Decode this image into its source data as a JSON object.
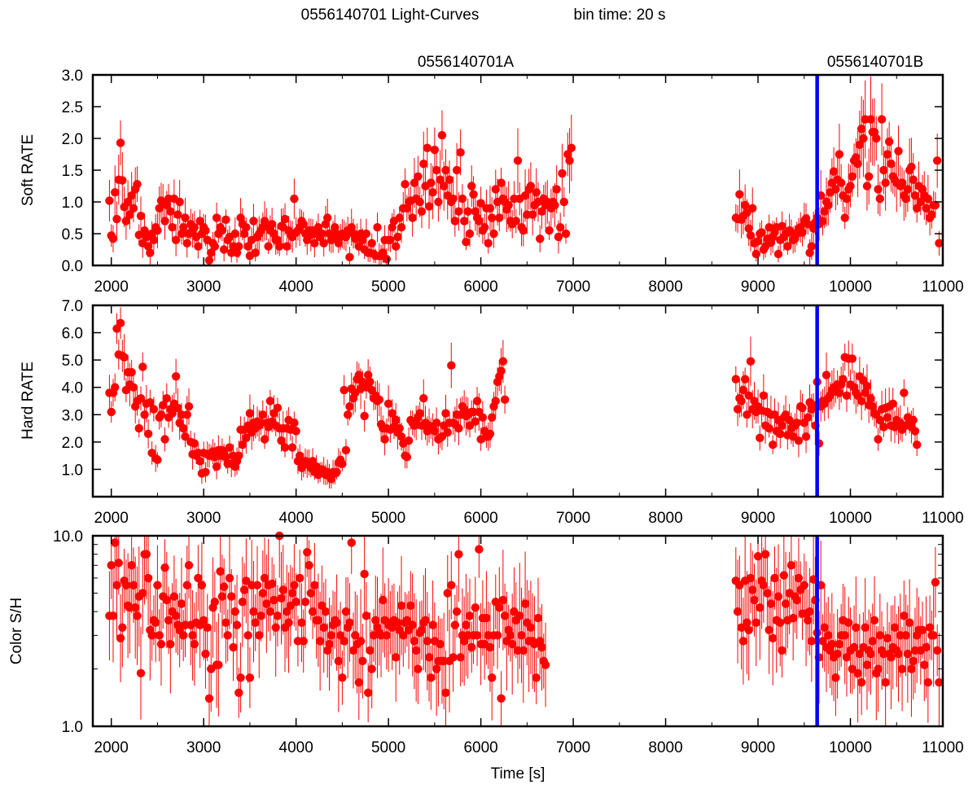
{
  "figure": {
    "title_left": "0556140701 Light-Curves",
    "title_right": "bin time: 20 s",
    "label_a": "0556140701A",
    "label_b": "0556140701B",
    "xlabel": "Time [s]"
  },
  "colors": {
    "points": "#ff0000",
    "marker_line": "#0000ff",
    "axes": "#000000"
  },
  "chart_data": [
    {
      "type": "scatter",
      "name": "soft",
      "ylabel": "Soft RATE",
      "xlim": [
        1800,
        11000
      ],
      "ylim": [
        0,
        3.0
      ],
      "yscale": "linear",
      "xticks": [
        2000,
        3000,
        4000,
        5000,
        6000,
        7000,
        8000,
        9000,
        10000,
        11000
      ],
      "xtick_labels": [
        "2000",
        "3000",
        "4000",
        "5000",
        "6000",
        "7000",
        "8000",
        "9000",
        "10000",
        "11000"
      ],
      "yticks": [
        0,
        0.5,
        1.0,
        1.5,
        2.0,
        2.5,
        3.0
      ],
      "ytick_labels": [
        "0.0",
        "0.5",
        "1.0",
        "1.5",
        "2.0",
        "2.5",
        "3.0"
      ],
      "marker_x": 9640,
      "segment_a": {
        "x_start": 1980,
        "dx": 20,
        "y": [
          1.02,
          0.47,
          0.42,
          1.15,
          0.73,
          1.35,
          1.93,
          1.34,
          0.92,
          0.7,
          1.0,
          0.8,
          1.1,
          0.9,
          1.2,
          1.28,
          0.48,
          0.78,
          0.35,
          0.55,
          0.45,
          0.3,
          0.2,
          0.5,
          0.4,
          0.6,
          0.55,
          0.9,
          1.02,
          1.0,
          0.7,
          0.95,
          1.05,
          0.85,
          0.6,
          1.05,
          0.4,
          0.8,
          1.0,
          0.5,
          0.6,
          0.75,
          0.35,
          0.5,
          0.65,
          0.55,
          0.6,
          0.45,
          0.3,
          0.7,
          0.5,
          0.6,
          0.55,
          0.4,
          0.08,
          0.2,
          0.35,
          0.3,
          0.75,
          0.5,
          0.6,
          0.55,
          0.25,
          0.72,
          0.4,
          0.45,
          0.2,
          0.3,
          0.5,
          0.2,
          0.3,
          0.75,
          0.65,
          0.5,
          0.6,
          0.3,
          0.15,
          0.4,
          0.7,
          0.2,
          0.45,
          0.5,
          0.55,
          0.6,
          0.7,
          0.65,
          0.3,
          0.55,
          0.65,
          0.5,
          0.4,
          0.4,
          0.3,
          0.62,
          0.6,
          0.73,
          0.3,
          0.55,
          0.48,
          0.45,
          1.05,
          0.52,
          0.55,
          0.6,
          0.7,
          0.65,
          0.5,
          0.4,
          0.55,
          0.48,
          0.55,
          0.35,
          0.5,
          0.6,
          0.45,
          0.5,
          0.35,
          0.65,
          0.75,
          0.5,
          0.4,
          0.45,
          0.6,
          0.5,
          0.35,
          0.45,
          0.5,
          0.48,
          0.45,
          0.55,
          0.13,
          0.6,
          0.5,
          0.42,
          0.45,
          0.3,
          0.5,
          0.4,
          0.25,
          0.5,
          0.2,
          0.2,
          0.35,
          0.18,
          0.15,
          0.6,
          0.15,
          0.15,
          0.2,
          0.4,
          0.1,
          0.4,
          0.4,
          0.6,
          0.7,
          0.3,
          0.45,
          0.75,
          0.6,
          0.9,
          1.28,
          0.9,
          1.0,
          1.02,
          0.75,
          1.3,
          1.05,
          1.4,
          1.0,
          0.85,
          1.6,
          1.25,
          1.85,
          0.93,
          1.3,
          1.15,
          1.82,
          1.5,
          1.0,
          1.35,
          2.05,
          1.25,
          1.5,
          1.1,
          1.35,
          1.0,
          1.05,
          0.7,
          1.5,
          0.85,
          1.78,
          1.05,
          0.7,
          0.37,
          0.85,
          0.5,
          1.25,
          1.12,
          0.85,
          0.75,
          0.7,
          0.98,
          0.55,
          0.6,
          0.9,
          0.35,
          0.9,
          0.75,
          0.5,
          1.2,
          1.0,
          0.75,
          1.3,
          1.05,
          1.0,
          0.88,
          0.95,
          0.7,
          0.65,
          1.05,
          0.7,
          1.65,
          1.05,
          0.6,
          0.55,
          1.1,
          0.8,
          1.2,
          1.25,
          0.8,
          0.95,
          1.15,
          1.0,
          0.42,
          0.85,
          1.05,
          0.95,
          1.0,
          0.55,
          0.9,
          1.0,
          0.95,
          1.2,
          0.45,
          0.6,
          1.45,
          1.0,
          0.5,
          1.75,
          1.65,
          1.85
        ]
      },
      "segment_b": {
        "x_start": 8760,
        "dx": 20,
        "y": [
          0.75,
          0.73,
          1.12,
          0.72,
          0.78,
          0.95,
          0.83,
          0.58,
          0.47,
          0.9,
          0.35,
          0.18,
          0.38,
          0.5,
          0.52,
          0.25,
          0.3,
          0.42,
          0.6,
          0.36,
          0.45,
          0.52,
          0.6,
          0.18,
          0.4,
          0.62,
          0.45,
          0.5,
          0.3,
          0.55,
          0.52,
          0.4,
          0.42,
          0.5,
          0.58,
          0.6,
          0.52,
          0.7,
          0.74,
          0.65,
          0.2,
          0.3,
          0.58,
          0.68,
          0.75,
          0.65,
          1.1,
          0.7,
          0.85,
          1.0,
          0.95,
          1.15,
          1.3,
          1.48,
          1.2,
          1.35,
          1.75,
          1.3,
          1.1,
          0.75,
          1.05,
          1.2,
          1.25,
          1.4,
          1.65,
          1.7,
          1.6,
          1.9,
          2.15,
          2.0,
          2.3,
          1.25,
          1.4,
          2.3,
          2.1,
          2.1,
          2.0,
          1.2,
          1.05,
          2.3,
          1.5,
          1.3,
          1.75,
          1.95,
          1.6,
          1.4,
          1.35,
          1.3,
          1.8,
          1.25,
          1.3,
          1.1,
          1.05,
          1.2,
          1.5,
          1.55,
          1.35,
          1.1,
          0.9,
          1.25,
          1.0,
          1.2,
          1.1,
          0.9,
          1.05,
          0.75,
          0.8,
          0.95,
          0.95,
          1.65,
          0.35
        ]
      }
    },
    {
      "type": "scatter",
      "name": "hard",
      "ylabel": "Hard RATE",
      "xlim": [
        1800,
        11000
      ],
      "ylim": [
        0,
        7.0
      ],
      "yscale": "linear",
      "xticks": [
        2000,
        3000,
        4000,
        5000,
        6000,
        7000,
        8000,
        9000,
        10000,
        11000
      ],
      "xtick_labels": [
        "2000",
        "3000",
        "4000",
        "5000",
        "6000",
        "7000",
        "8000",
        "9000",
        "10000",
        "11000"
      ],
      "yticks": [
        1,
        2,
        3,
        4,
        5,
        6,
        7
      ],
      "ytick_labels": [
        "1.0",
        "2.0",
        "3.0",
        "4.0",
        "5.0",
        "6.0",
        "7.0"
      ],
      "marker_x": 9640,
      "segment_a": {
        "x_start": 1980,
        "dx": 20,
        "y": [
          3.8,
          3.1,
          3.8,
          4.0,
          6.15,
          5.2,
          6.35,
          5.15,
          5.1,
          3.9,
          4.55,
          4.1,
          4.55,
          4.0,
          3.3,
          3.5,
          2.5,
          3.6,
          4.75,
          3.0,
          3.4,
          2.3,
          3.45,
          1.6,
          3.2,
          1.4,
          1.35,
          2.9,
          3.0,
          3.35,
          2.1,
          3.6,
          2.9,
          3.2,
          3.05,
          3.4,
          4.4,
          3.25,
          2.7,
          3.0,
          2.5,
          2.2,
          3.0,
          3.3,
          2.0,
          1.55,
          1.95,
          1.5,
          1.6,
          1.3,
          0.85,
          1.6,
          0.9,
          1.55,
          1.5,
          1.6,
          1.65,
          1.45,
          1.1,
          1.7,
          1.5,
          1.7,
          1.6,
          1.45,
          1.2,
          1.8,
          1.2,
          1.5,
          1.1,
          1.3,
          1.5,
          2.45,
          1.9,
          2.45,
          2.15,
          2.6,
          3.05,
          2.35,
          2.7,
          2.5,
          2.75,
          2.6,
          2.7,
          3.0,
          2.1,
          2.7,
          2.55,
          3.5,
          2.75,
          3.05,
          2.6,
          3.25,
          2.5,
          2.05,
          2.5,
          1.8,
          2.5,
          2.8,
          2.45,
          1.8,
          2.7,
          2.4,
          1.3,
          1.5,
          1.05,
          1.15,
          1.3,
          1.2,
          1.25,
          1.05,
          1.3,
          0.9,
          1.1,
          0.8,
          0.9,
          1.0,
          0.95,
          0.8,
          0.9,
          0.75,
          0.65,
          0.9,
          0.85,
          0.9,
          1.25,
          1.35,
          1.2,
          3.9,
          1.7,
          3.0,
          3.3,
          3.95,
          3.6,
          3.8,
          4.3,
          4.45,
          3.95,
          4.2,
          2.95,
          4.0,
          4.45,
          4.2,
          3.9,
          3.6,
          3.7,
          3.5,
          3.55,
          2.65,
          2.5,
          2.1,
          2.5,
          3.4,
          2.45,
          3.05,
          2.55,
          2.8,
          2.35,
          2.5,
          2.2,
          1.95,
          1.5,
          1.45,
          2.05,
          2.8,
          2.7,
          2.6,
          2.7,
          2.9,
          3.05,
          2.6,
          3.6,
          2.7,
          2.4,
          2.6,
          2.5,
          2.45,
          2.4,
          2.7,
          2.1,
          2.15,
          2.2,
          2.6,
          3.05,
          2.35,
          2.7,
          4.8,
          2.7,
          2.65,
          3.0,
          2.5,
          3.0,
          3.3,
          3.2,
          2.95,
          3.0,
          2.6,
          3.1,
          3.1,
          2.75,
          3.5,
          3.1,
          2.1,
          2.9,
          2.4,
          2.2,
          2.2,
          2.3,
          2.9,
          3.3,
          3.5,
          4.2,
          4.4,
          4.6,
          4.95,
          3.55
        ]
      },
      "segment_b": {
        "x_start": 8760,
        "dx": 20,
        "y": [
          4.3,
          3.2,
          3.6,
          3.5,
          3.9,
          4.3,
          3.0,
          3.7,
          4.95,
          3.2,
          3.5,
          3.1,
          3.3,
          2.15,
          3.15,
          3.7,
          2.6,
          3.1,
          2.5,
          3.0,
          1.9,
          3.0,
          2.4,
          2.8,
          2.3,
          2.6,
          2.9,
          3.0,
          2.25,
          2.8,
          2.5,
          2.2,
          2.6,
          2.7,
          2.05,
          3.3,
          3.25,
          2.7,
          2.2,
          2.9,
          3.45,
          3.2,
          3.35,
          2.6,
          4.2,
          1.95,
          3.3,
          3.5,
          3.4,
          4.45,
          3.6,
          3.7,
          3.9,
          4.0,
          3.85,
          4.1,
          3.8,
          4.1,
          4.3,
          5.1,
          3.7,
          5.05,
          4.1,
          5.05,
          4.0,
          3.8,
          3.7,
          4.4,
          3.5,
          4.25,
          3.8,
          4.05,
          3.35,
          3.6,
          3.3,
          3.05,
          3.0,
          2.1,
          2.8,
          3.2,
          2.55,
          3.25,
          2.9,
          3.3,
          2.6,
          3.4,
          2.55,
          2.8,
          2.6,
          2.7,
          2.45,
          3.8,
          2.6,
          2.9,
          2.7,
          2.55,
          2.8,
          2.4,
          1.9
        ]
      }
    },
    {
      "type": "scatter",
      "name": "color",
      "ylabel": "Color S/H",
      "xlabel": "Time [s]",
      "xlim": [
        1800,
        11000
      ],
      "ylim": [
        1,
        10
      ],
      "yscale": "log",
      "xticks": [
        2000,
        3000,
        4000,
        5000,
        6000,
        7000,
        8000,
        9000,
        10000,
        11000
      ],
      "xtick_labels": [
        "2000",
        "3000",
        "4000",
        "5000",
        "6000",
        "7000",
        "8000",
        "9000",
        "10000",
        "11000"
      ],
      "yticks": [
        1,
        10
      ],
      "ytick_labels": [
        "1.0",
        "10.0"
      ],
      "marker_x": 9640,
      "segment_a": {
        "x_start": 1980,
        "dx": 20,
        "y": [
          3.8,
          7.0,
          3.8,
          9.2,
          5.5,
          7.2,
          2.9,
          3.3,
          5.8,
          5.5,
          4.3,
          4.2,
          7.0,
          5.5,
          4.2,
          3.8,
          4.8,
          1.9,
          5.0,
          8.0,
          8.0,
          6.0,
          3.2,
          3.0,
          3.6,
          3.5,
          5.5,
          3.0,
          2.7,
          4.8,
          6.8,
          4.6,
          3.6,
          2.7,
          4.0,
          4.8,
          3.8,
          3.4,
          3.2,
          4.4,
          3.0,
          3.4,
          5.5,
          7.0,
          3.4,
          3.0,
          2.7,
          3.5,
          6.0,
          3.4,
          5.5,
          3.6,
          2.4,
          3.3,
          1.4,
          2.0,
          4.2,
          4.5,
          2.1,
          2.1,
          6.5,
          4.8,
          5.4,
          3.5,
          3.0,
          6.0,
          4.8,
          2.6,
          4.0,
          3.4,
          1.5,
          1.8,
          4.5,
          5.2,
          5.8,
          3.0,
          1.8,
          5.5,
          4.0,
          3.5,
          5.5,
          3.0,
          3.8,
          5.0,
          6.0,
          4.4,
          5.5,
          4.0,
          5.6,
          4.6,
          3.3,
          3.8,
          10.0,
          4.7,
          5.2,
          3.3,
          4.0,
          3.5,
          4.3,
          5.0,
          5.5,
          4.5,
          2.8,
          6.0,
          3.5,
          2.8,
          4.5,
          8.2,
          7.0,
          5.0,
          4.0,
          5.5,
          3.6,
          3.6,
          2.8,
          4.3,
          3.3,
          4.0,
          2.5,
          2.7,
          3.0,
          3.4,
          3.6,
          3.5,
          2.2,
          3.0,
          1.8,
          2.8,
          4.0,
          3.3,
          3.5,
          9.2,
          2.5,
          3.0,
          2.7,
          1.7,
          2.8,
          2.2,
          6.3,
          3.8,
          1.5,
          2.5,
          2.0,
          3.0,
          3.6,
          3.3,
          3.1,
          3.0,
          4.6,
          3.6,
          3.0,
          3.4,
          3.5,
          3.3,
          3.6,
          2.3,
          3.5,
          3.2,
          4.3,
          3.0,
          3.5,
          3.6,
          3.2,
          4.3,
          3.4,
          2.8,
          2.5,
          2.0,
          3.1,
          3.2,
          3.5,
          3.6,
          2.8,
          2.3,
          1.8,
          3.4,
          2.8,
          2.0,
          2.2,
          2.7,
          2.2,
          2.2,
          1.5,
          5.0,
          2.2,
          5.5,
          2.3,
          3.4,
          4.0,
          8.0,
          2.3,
          3.0,
          2.8,
          3.4,
          3.0,
          3.8,
          2.6,
          3.0,
          4.2,
          3.0,
          8.5,
          2.7,
          3.7,
          2.7,
          3.7,
          3.0,
          2.6,
          1.8,
          3.0,
          4.5,
          3.0,
          4.2,
          1.4,
          4.6,
          3.8,
          2.8,
          3.2,
          3.0,
          2.7,
          4.0,
          3.6,
          2.5,
          3.8,
          3.0,
          2.5,
          4.4,
          3.5,
          2.8,
          3.3,
          2.8,
          2.7,
          1.8,
          3.7,
          2.8,
          2.6,
          2.2,
          2.1
        ]
      },
      "segment_b": {
        "x_start": 8760,
        "dx": 20,
        "y": [
          5.8,
          4.0,
          5.5,
          3.3,
          2.8,
          5.8,
          3.5,
          3.2,
          6.0,
          5.2,
          4.6,
          3.5,
          7.8,
          4.2,
          5.8,
          5.5,
          8.0,
          5.0,
          3.2,
          4.4,
          2.9,
          6.0,
          3.6,
          4.8,
          3.5,
          2.5,
          6.2,
          4.4,
          3.6,
          5.0,
          7.0,
          3.7,
          4.8,
          4.6,
          6.0,
          5.2,
          3.9,
          5.5,
          3.9,
          3.6,
          4.0,
          2.8,
          5.9,
          4.6,
          3.1,
          2.3,
          5.5,
          2.8,
          3.3,
          2.6,
          3.0,
          2.5,
          2.7,
          2.3,
          1.8,
          2.4,
          2.7,
          3.0,
          3.6,
          3.0,
          2.3,
          3.5,
          2.5,
          2.0,
          2.6,
          3.3,
          1.9,
          2.4,
          1.7,
          2.6,
          3.3,
          2.1,
          2.5,
          2.4,
          2.8,
          3.6,
          1.9,
          2.0,
          3.0,
          2.5,
          2.4,
          1.7,
          2.9,
          2.4,
          2.3,
          2.6,
          3.3,
          2.5,
          2.4,
          3.0,
          2.0,
          3.8,
          3.0,
          2.4,
          3.5,
          2.0,
          2.2,
          2.5,
          3.0,
          3.2,
          2.5,
          3.2,
          2.1,
          2.6,
          1.7,
          3.3,
          3.0,
          3.0,
          5.7,
          2.5,
          1.7
        ]
      }
    }
  ]
}
